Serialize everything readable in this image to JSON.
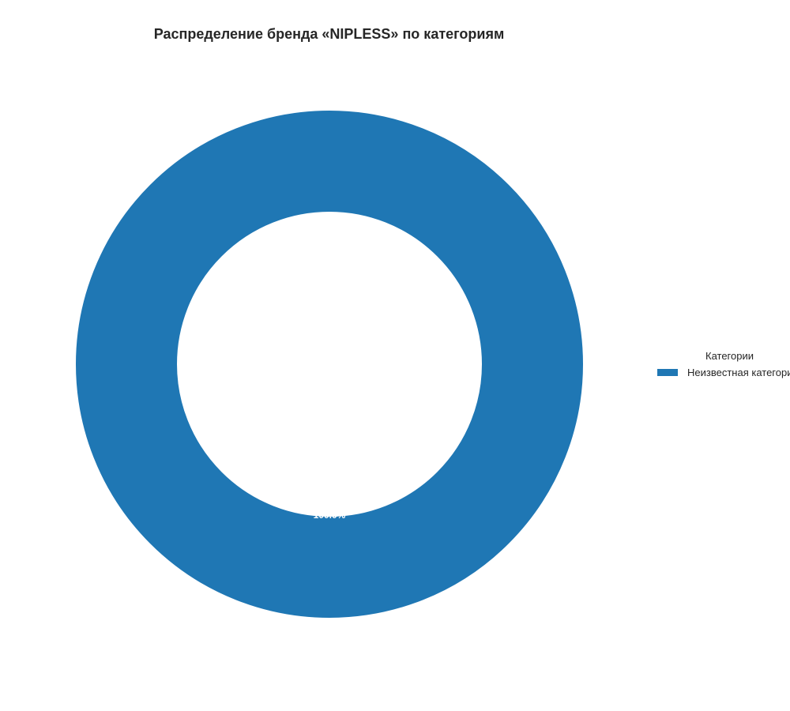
{
  "chart_data": {
    "type": "pie",
    "variant": "donut",
    "title": "Распределение бренда «NIPLESS» по категориям",
    "legend": {
      "title": "Категории",
      "placement": "right"
    },
    "slices": [
      {
        "label": "Неизвестная категория",
        "value": 100.0,
        "percent_label": "100.0%",
        "color": "#1f77b4"
      }
    ]
  }
}
